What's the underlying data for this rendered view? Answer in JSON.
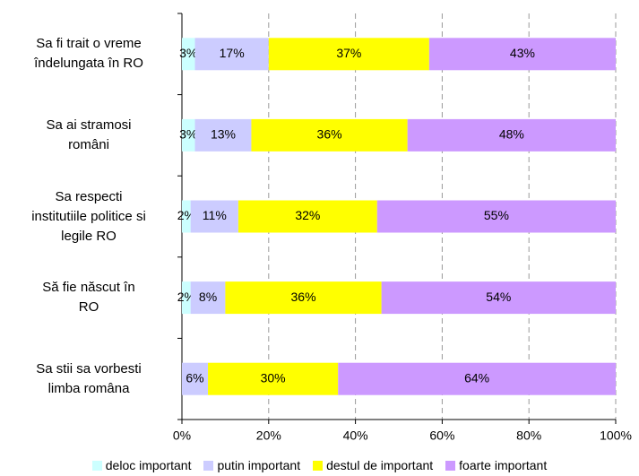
{
  "chart_data": {
    "type": "stacked-barh",
    "categories": [
      "Sa fi trait o vreme\nîndelungata în RO",
      "Sa ai stramosi\nromâni",
      "Sa respecti\ninstitutiile politice si\nlegile RO",
      "Să fie născut în\nRO",
      "Sa stii sa vorbesti\nlimba româna"
    ],
    "series": [
      {
        "name": "deloc important",
        "color": "#ccffff",
        "values": [
          3,
          3,
          2,
          2,
          null
        ],
        "value_labels": [
          "3%",
          "3%",
          "2%",
          "2%",
          null
        ]
      },
      {
        "name": "putin important",
        "color": "#ccccff",
        "values": [
          17,
          13,
          11,
          8,
          6
        ],
        "value_labels": [
          "17%",
          "13%",
          "11%",
          "8%",
          "6%"
        ]
      },
      {
        "name": "destul de important",
        "color": "#ffff00",
        "values": [
          37,
          36,
          32,
          36,
          30
        ],
        "value_labels": [
          "37%",
          "36%",
          "32%",
          "36%",
          "30%"
        ]
      },
      {
        "name": "foarte important",
        "color": "#cc99ff",
        "values": [
          43,
          48,
          55,
          54,
          64
        ],
        "value_labels": [
          "43%",
          "48%",
          "55%",
          "54%",
          "64%"
        ]
      }
    ],
    "xlim": [
      0,
      100
    ],
    "xticks": [
      {
        "value": 0,
        "label": "0%"
      },
      {
        "value": 20,
        "label": "20%"
      },
      {
        "value": 40,
        "label": "40%"
      },
      {
        "value": 60,
        "label": "60%"
      },
      {
        "value": 80,
        "label": "80%"
      },
      {
        "value": 100,
        "label": "100%"
      }
    ],
    "grid": true,
    "legend": "bottom"
  }
}
